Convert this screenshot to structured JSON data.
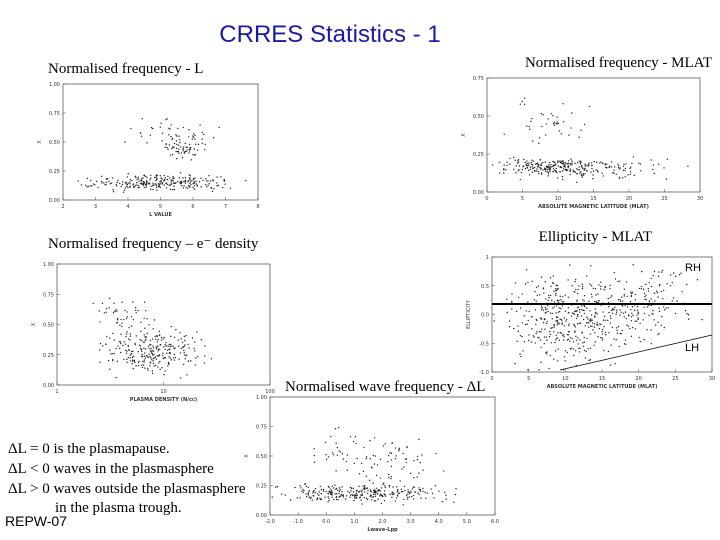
{
  "title": "CRRES Statistics - 1",
  "panels": [
    {
      "label": "Normalised frequency - L",
      "xlabel": "L VALUE",
      "ylabel": "X",
      "xticks": [
        "2",
        "3",
        "4",
        "5",
        "6",
        "7",
        "8"
      ],
      "yticks": [
        "0.00",
        "0.25",
        "0.50",
        "0.75",
        "1.00"
      ]
    },
    {
      "label": "Normalised frequency - MLAT",
      "xlabel": "ABSOLUTE MAGNETIC LATITUDE (MLAT)",
      "ylabel": "X",
      "xticks": [
        "0",
        "5",
        "10",
        "15",
        "20",
        "25",
        "30"
      ],
      "yticks": [
        "0.00",
        "0.25",
        "0.50",
        "0.75"
      ]
    },
    {
      "label": "Normalised frequency – e⁻ density",
      "xlabel": "PLASMA DENSITY (N/cc)",
      "ylabel": "X",
      "xticks": [
        "1",
        "10",
        "100"
      ],
      "yticks": [
        "0.00",
        "0.25",
        "0.50",
        "0.75",
        "1.00"
      ]
    },
    {
      "label": "Ellipticity - MLAT",
      "xlabel": "ABSOLUTE MAGNETIC LATITUDE (MLAT)",
      "ylabel": "ELLIPTICITY",
      "xticks": [
        "0",
        "5",
        "10",
        "15",
        "20",
        "25",
        "30"
      ],
      "yticks": [
        "-1.0",
        "-0.5",
        "0.0",
        "0.5",
        "1"
      ]
    },
    {
      "label": "Normalised wave frequency - ΔL",
      "xlabel": "Lwave-Lpp",
      "ylabel": "X",
      "xticks": [
        "-2.0",
        "-1.0",
        "0.0",
        "1.0",
        "2.0",
        "3.0",
        "4.0",
        "5.0",
        "6.0"
      ],
      "yticks": [
        "0.00",
        "0.25",
        "0.50",
        "0.75",
        "1.00"
      ]
    }
  ],
  "rh": "RH",
  "lh": "LH",
  "notes": [
    "ΔL = 0 is the plasmapause.",
    "ΔL < 0 waves in the plasmasphere",
    "ΔL > 0 waves outside the plasmasphere",
    "in the plasma trough."
  ],
  "footer": "REPW-07"
}
